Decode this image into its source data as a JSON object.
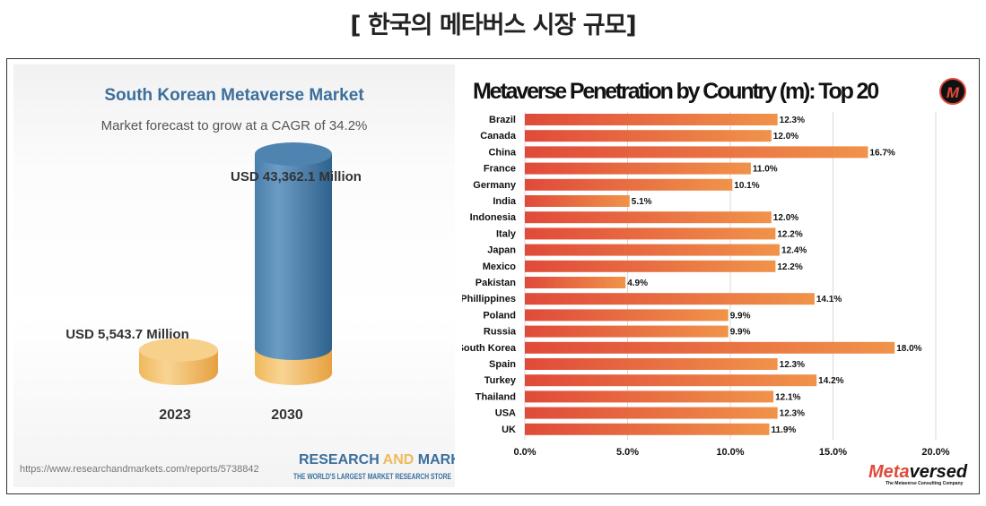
{
  "page_title": "[ 한국의 메타버스 시장 규모]",
  "chart_data": [
    {
      "type": "bar",
      "title": "South Korean Metaverse Market",
      "subtitle": "Market forecast to grow at a CAGR of 34.2%",
      "categories": [
        "2023",
        "2030"
      ],
      "values": [
        5543.7,
        43362.1
      ],
      "data_labels": [
        "USD 5,543.7 Million",
        "USD 43,362.1 Million"
      ],
      "unit": "USD Million",
      "source": "https://www.researchandmarkets.com/reports/5738842",
      "brand": {
        "part1": "RESEARCH ",
        "part2": "AND",
        "part3": " MARKETS",
        "tagline": "THE WORLD'S LARGEST MARKET RESEARCH STORE"
      },
      "colors": {
        "bar_2030": "#4a7fab",
        "bar_base": "#f0b95c",
        "title": "#3b6f9c"
      }
    },
    {
      "type": "bar",
      "orientation": "horizontal",
      "title": "Metaverse Penetration by Country (m):  Top 20",
      "categories": [
        "Brazil",
        "Canada",
        "China",
        "France",
        "Germany",
        "India",
        "Indonesia",
        "Italy",
        "Japan",
        "Mexico",
        "Pakistan",
        "Phillippines",
        "Poland",
        "Russia",
        "South Korea",
        "Spain",
        "Turkey",
        "Thailand",
        "USA",
        "UK"
      ],
      "values": [
        12.3,
        12.0,
        16.7,
        11.0,
        10.1,
        5.1,
        12.0,
        12.2,
        12.4,
        12.2,
        4.9,
        14.1,
        9.9,
        9.9,
        18.0,
        12.3,
        14.2,
        12.1,
        12.3,
        11.9
      ],
      "data_labels": [
        "12.3%",
        "12.0%",
        "16.7%",
        "11.0%",
        "10.1%",
        "5.1%",
        "12.0%",
        "12.2%",
        "12.4%",
        "12.2%",
        "4.9%",
        "14.1%",
        "9.9%",
        "9.9%",
        "18.0%",
        "12.3%",
        "14.2%",
        "12.1%",
        "12.3%",
        "11.9%"
      ],
      "xlim": [
        0,
        20
      ],
      "xticks": [
        "0.0%",
        "5.0%",
        "10.0%",
        "15.0%",
        "20.0%"
      ],
      "grid": true,
      "colors": {
        "bar_start": "#e04a3a",
        "bar_end": "#f0934a",
        "logo": "#e04a3a"
      },
      "logo_letter": "M",
      "brand": {
        "part1": "Meta",
        "part2": "versed",
        "tagline": "The Metaverse Consulting Company"
      }
    }
  ]
}
